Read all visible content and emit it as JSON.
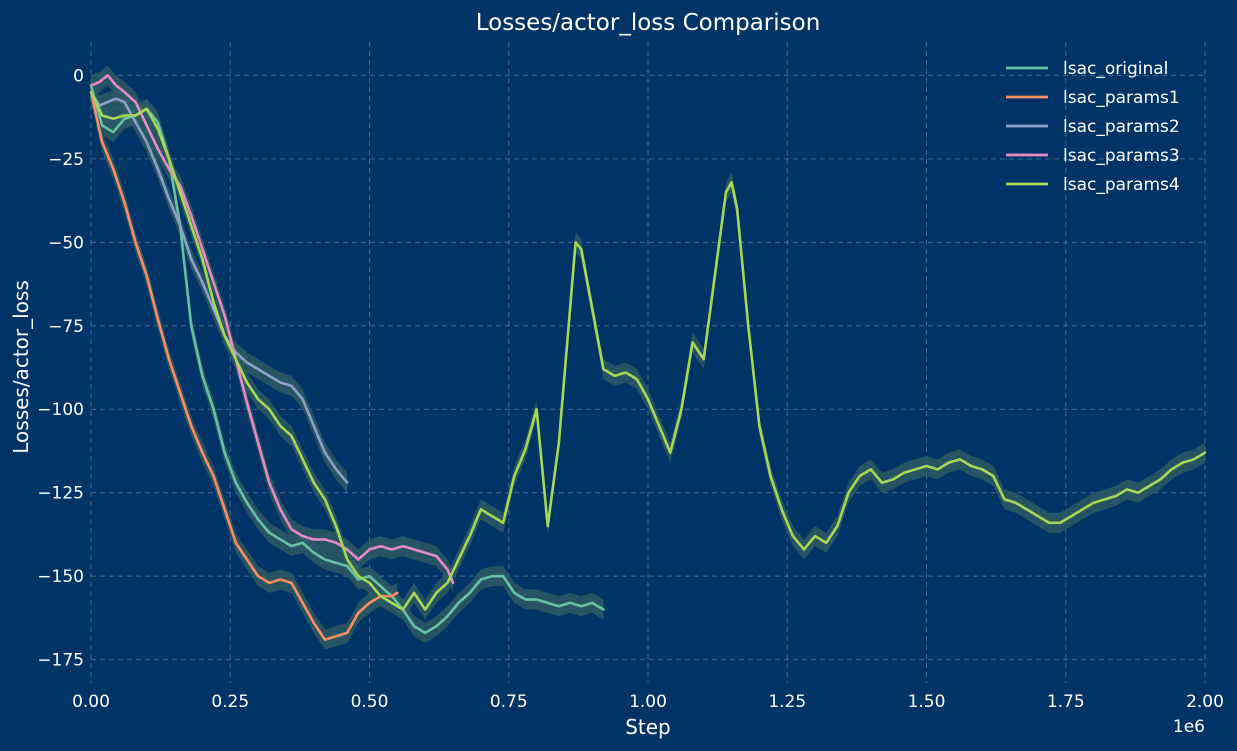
{
  "colors": {
    "background": "#003366",
    "text": "#ffffff",
    "grid": "#5a7ea3",
    "band": "#2e5a63"
  },
  "chart_data": {
    "type": "line",
    "title": "Losses/actor_loss Comparison",
    "xlabel": "Step",
    "ylabel": "Losses/actor_loss",
    "x_scale_label": "1e6",
    "xlim": [
      0,
      2000000
    ],
    "ylim": [
      -182,
      10
    ],
    "grid": true,
    "legend_position": "top-right",
    "x_ticks": [
      0,
      250000,
      500000,
      750000,
      1000000,
      1250000,
      1500000,
      1750000,
      2000000
    ],
    "x_tick_labels": [
      "0.00",
      "0.25",
      "0.50",
      "0.75",
      "1.00",
      "1.25",
      "1.50",
      "1.75",
      "2.00"
    ],
    "y_ticks": [
      0,
      -25,
      -50,
      -75,
      -100,
      -125,
      -150,
      -175
    ],
    "y_tick_labels": [
      "0",
      "−25",
      "−50",
      "−75",
      "−100",
      "−125",
      "−150",
      "−175"
    ],
    "series": [
      {
        "name": "lsac_original",
        "color": "#66c2a5",
        "band": 3,
        "x": [
          0,
          20000,
          40000,
          60000,
          80000,
          100000,
          120000,
          140000,
          160000,
          180000,
          200000,
          220000,
          240000,
          260000,
          280000,
          300000,
          320000,
          340000,
          360000,
          380000,
          400000,
          420000,
          440000,
          460000,
          480000,
          500000,
          520000,
          540000,
          560000,
          580000,
          600000,
          620000,
          640000,
          660000,
          680000,
          700000,
          720000,
          740000,
          760000,
          780000,
          800000,
          820000,
          840000,
          860000,
          880000,
          900000,
          920000
        ],
        "y": [
          -3,
          -15,
          -17,
          -13,
          -12,
          -10,
          -14,
          -25,
          -45,
          -75,
          -90,
          -100,
          -113,
          -122,
          -128,
          -133,
          -137,
          -139,
          -141,
          -140,
          -143,
          -145,
          -146,
          -147,
          -151,
          -150,
          -153,
          -156,
          -160,
          -165,
          -167,
          -165,
          -162,
          -158,
          -155,
          -151,
          -150,
          -150,
          -155,
          -157,
          -157,
          -158,
          -159,
          -158,
          -159,
          -158,
          -160
        ]
      },
      {
        "name": "lsac_params1",
        "color": "#fc8d62",
        "band": 3,
        "x": [
          0,
          20000,
          40000,
          60000,
          80000,
          100000,
          120000,
          140000,
          160000,
          180000,
          200000,
          220000,
          240000,
          260000,
          280000,
          300000,
          320000,
          340000,
          360000,
          380000,
          400000,
          420000,
          440000,
          460000,
          480000,
          500000,
          520000,
          540000,
          550000
        ],
        "y": [
          -5,
          -20,
          -28,
          -38,
          -50,
          -60,
          -73,
          -85,
          -95,
          -105,
          -113,
          -120,
          -130,
          -140,
          -145,
          -150,
          -152,
          -151,
          -152,
          -158,
          -164,
          -169,
          -168,
          -167,
          -161,
          -158,
          -156,
          -156,
          -155
        ]
      },
      {
        "name": "lsac_params2",
        "color": "#8da0cb",
        "band": 3,
        "x": [
          0,
          15000,
          30000,
          45000,
          60000,
          80000,
          100000,
          120000,
          140000,
          160000,
          180000,
          200000,
          220000,
          240000,
          260000,
          280000,
          300000,
          320000,
          340000,
          360000,
          380000,
          400000,
          420000,
          440000,
          460000
        ],
        "y": [
          -5,
          -9,
          -8,
          -7,
          -8,
          -14,
          -20,
          -28,
          -37,
          -45,
          -55,
          -62,
          -70,
          -78,
          -83,
          -86,
          -88,
          -90,
          -92,
          -93,
          -97,
          -105,
          -113,
          -118,
          -122
        ]
      },
      {
        "name": "lsac_params3",
        "color": "#e78ac3",
        "band": 3,
        "x": [
          0,
          15000,
          30000,
          45000,
          60000,
          80000,
          100000,
          120000,
          140000,
          160000,
          180000,
          200000,
          220000,
          240000,
          260000,
          280000,
          300000,
          320000,
          340000,
          360000,
          380000,
          400000,
          420000,
          440000,
          460000,
          480000,
          500000,
          520000,
          540000,
          560000,
          580000,
          600000,
          620000,
          640000,
          650000
        ],
        "y": [
          -3,
          -2,
          0,
          -3,
          -5,
          -8,
          -15,
          -22,
          -28,
          -33,
          -42,
          -52,
          -62,
          -72,
          -85,
          -98,
          -110,
          -122,
          -130,
          -136,
          -138,
          -139,
          -139,
          -140,
          -142,
          -145,
          -142,
          -141,
          -142,
          -141,
          -142,
          -143,
          -144,
          -148,
          -152
        ]
      },
      {
        "name": "lsac_params4",
        "color": "#a6d854",
        "band": 3,
        "x": [
          0,
          20000,
          40000,
          60000,
          80000,
          100000,
          120000,
          140000,
          160000,
          180000,
          200000,
          220000,
          240000,
          260000,
          280000,
          300000,
          320000,
          340000,
          360000,
          380000,
          400000,
          420000,
          440000,
          460000,
          480000,
          500000,
          520000,
          540000,
          560000,
          580000,
          600000,
          620000,
          640000,
          660000,
          680000,
          700000,
          720000,
          740000,
          760000,
          780000,
          800000,
          820000,
          840000,
          860000,
          870000,
          880000,
          900000,
          920000,
          940000,
          960000,
          980000,
          1000000,
          1020000,
          1040000,
          1060000,
          1080000,
          1100000,
          1120000,
          1140000,
          1150000,
          1160000,
          1180000,
          1200000,
          1220000,
          1240000,
          1260000,
          1280000,
          1300000,
          1320000,
          1340000,
          1360000,
          1380000,
          1400000,
          1420000,
          1440000,
          1460000,
          1480000,
          1500000,
          1520000,
          1540000,
          1560000,
          1580000,
          1600000,
          1620000,
          1640000,
          1660000,
          1680000,
          1700000,
          1720000,
          1740000,
          1760000,
          1780000,
          1800000,
          1820000,
          1840000,
          1860000,
          1880000,
          1900000,
          1920000,
          1940000,
          1960000,
          1980000,
          2000000
        ],
        "y": [
          -5,
          -12,
          -13,
          -12,
          -12,
          -10,
          -16,
          -25,
          -35,
          -45,
          -55,
          -68,
          -78,
          -85,
          -92,
          -97,
          -100,
          -105,
          -108,
          -115,
          -122,
          -127,
          -135,
          -145,
          -150,
          -152,
          -156,
          -158,
          -160,
          -155,
          -160,
          -155,
          -152,
          -145,
          -138,
          -130,
          -132,
          -134,
          -120,
          -112,
          -100,
          -135,
          -110,
          -70,
          -50,
          -52,
          -70,
          -88,
          -90,
          -89,
          -91,
          -97,
          -105,
          -113,
          -100,
          -80,
          -85,
          -60,
          -35,
          -32,
          -40,
          -75,
          -105,
          -120,
          -130,
          -138,
          -142,
          -138,
          -140,
          -135,
          -125,
          -120,
          -118,
          -122,
          -121,
          -119,
          -118,
          -117,
          -118,
          -116,
          -115,
          -117,
          -118,
          -120,
          -127,
          -128,
          -130,
          -132,
          -134,
          -134,
          -132,
          -130,
          -128,
          -127,
          -126,
          -124,
          -125,
          -123,
          -121,
          -118,
          -116,
          -115,
          -113
        ]
      }
    ]
  }
}
